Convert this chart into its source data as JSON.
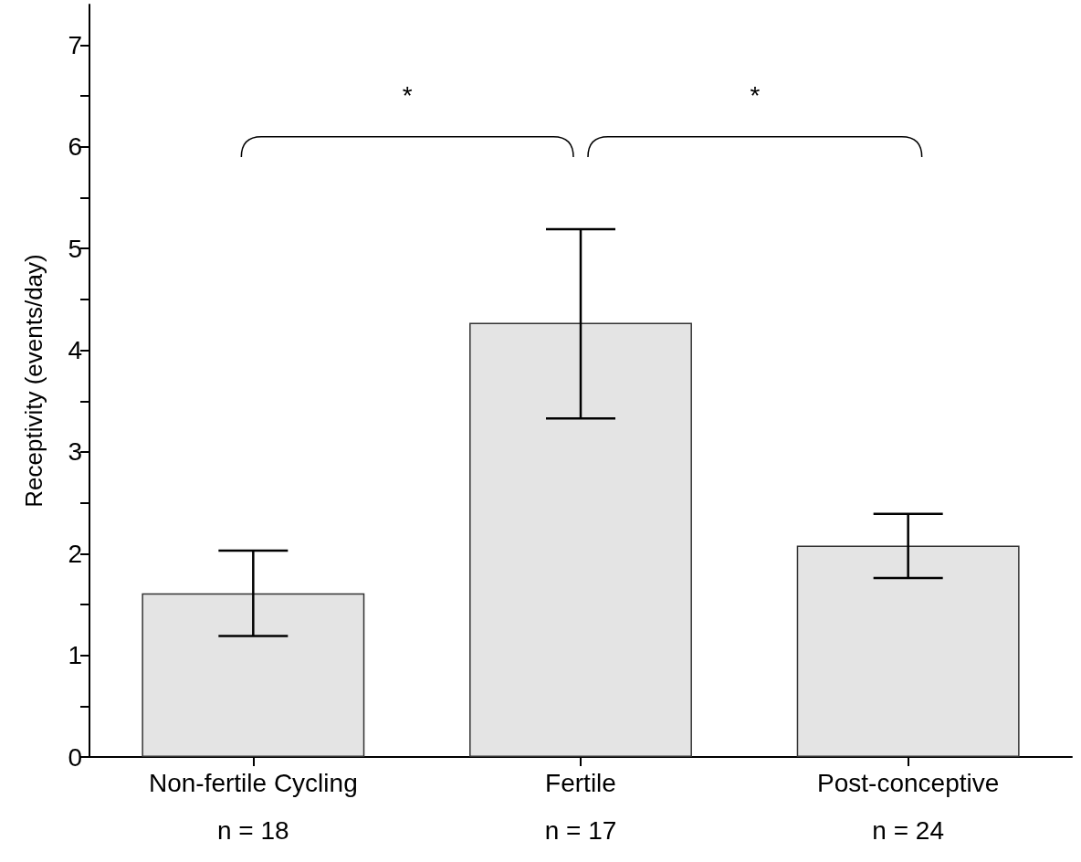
{
  "chart_data": {
    "type": "bar",
    "ylabel": "Receptivity (events/day)",
    "categories": [
      "Non-fertile Cycling",
      "Fertile",
      "Post-conceptive"
    ],
    "values": [
      1.61,
      4.27,
      2.08
    ],
    "errors": [
      [
        1.19,
        2.03
      ],
      [
        3.33,
        5.19
      ],
      [
        1.76,
        2.39
      ]
    ],
    "color": "#e4e4e4",
    "ylim": [
      0,
      7.4
    ],
    "yticks": [
      0,
      {
        "value": 0.5,
        "label": null
      },
      1,
      {
        "value": 1.5,
        "label": null
      },
      2,
      {
        "value": 2.5,
        "label": null
      },
      3,
      {
        "value": 3.5,
        "label": null
      },
      4,
      {
        "value": 4.5,
        "label": null
      },
      5,
      {
        "value": 5.5,
        "label": null
      },
      6,
      {
        "value": 6.5,
        "label": null
      },
      7
    ],
    "grid": false,
    "annotations": [
      "*",
      "*",
      "n = 18",
      "n = 17",
      "n = 24"
    ]
  }
}
